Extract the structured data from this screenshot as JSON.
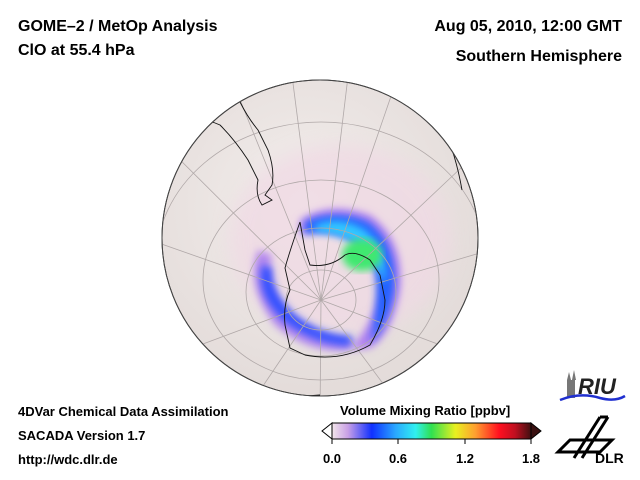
{
  "header": {
    "title_line1": "GOME–2 / MetOp Analysis",
    "title_line2": "ClO at 55.4 hPa",
    "date": "Aug 05, 2010, 12:00 GMT",
    "region": "Southern Hemisphere"
  },
  "footer": {
    "line1": "4DVar Chemical Data Assimilation",
    "line2": "SACADA Version 1.7",
    "line3": "http://wdc.dlr.de"
  },
  "colorbar": {
    "title": "Volume Mixing Ratio [ppbv]",
    "ticks": [
      "0.0",
      "0.6",
      "1.2",
      "1.8"
    ],
    "range": [
      0.0,
      1.8
    ],
    "colors": [
      "#f2e6ea",
      "#c9a0e6",
      "#1030ff",
      "#2aa8ff",
      "#30f0f0",
      "#30e050",
      "#e8f020",
      "#ffa030",
      "#ff1020",
      "#c01020",
      "#401010"
    ]
  },
  "logos": {
    "riu": "RIU",
    "dlr": "DLR"
  }
}
